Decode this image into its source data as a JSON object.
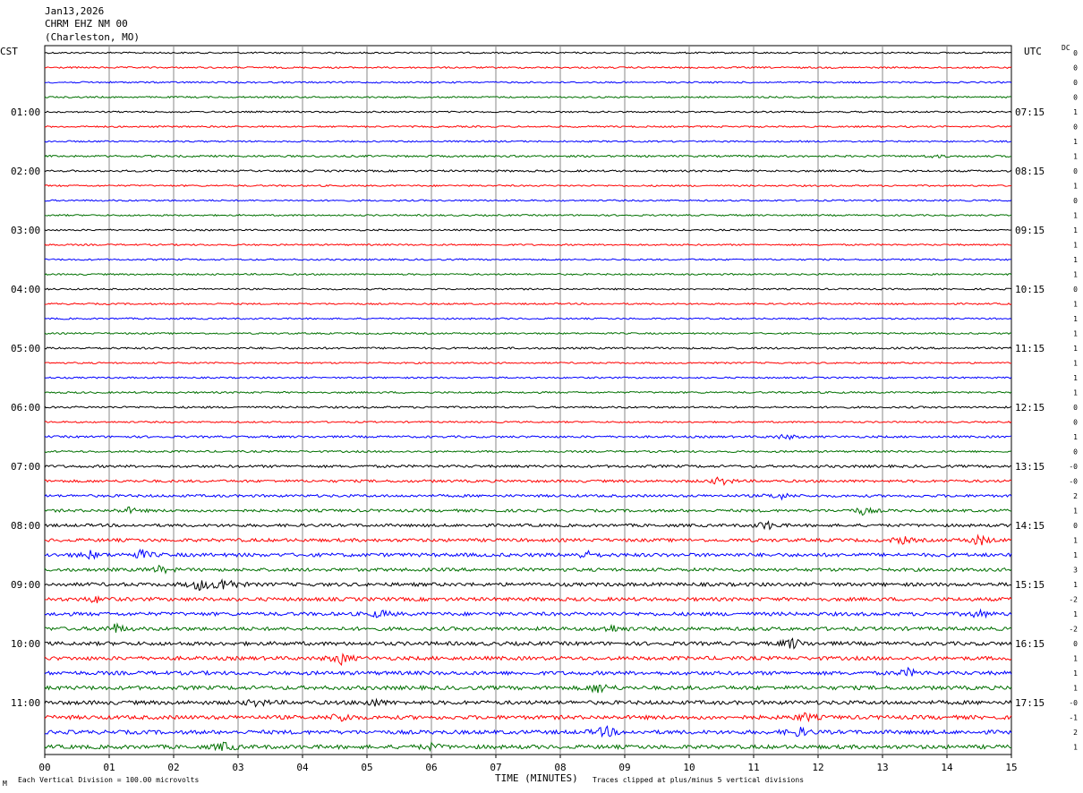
{
  "header": {
    "line1": "Jan13,2026",
    "line2": "CHRM EHZ NM 00",
    "line3": "(Charleston, MO)"
  },
  "left_timezone": "CST",
  "right_timezone": "UTC",
  "dc_label": "DC",
  "footer": {
    "scale_note": "Each Vertical Division =  100.00 microvolts",
    "clip_note": "Traces clipped at plus/minus 5 vertical divisions",
    "corner_mark": "M"
  },
  "chart_data": {
    "type": "line",
    "title": "",
    "xlabel": "TIME (MINUTES)",
    "ylabel": "",
    "xlim": [
      0,
      15
    ],
    "x_ticks": [
      "00",
      "01",
      "02",
      "03",
      "04",
      "05",
      "06",
      "07",
      "08",
      "09",
      "10",
      "11",
      "12",
      "13",
      "14",
      "15"
    ],
    "rows_per_hour": 4,
    "row_minutes": 15,
    "left_hour_labels": [
      "01:00",
      "02:00",
      "03:00",
      "04:00",
      "05:00",
      "06:00",
      "07:00",
      "08:00",
      "09:00",
      "10:00",
      "11:00"
    ],
    "right_hour_labels": [
      "07:15",
      "08:15",
      "09:15",
      "10:15",
      "11:15",
      "12:15",
      "13:15",
      "14:15",
      "15:15",
      "16:15",
      "17:15"
    ],
    "trace_colors": [
      "#000000",
      "#ff0000",
      "#0000ff",
      "#007000"
    ],
    "dc_values": [
      "0",
      "0",
      "0",
      "0",
      "1",
      "0",
      "1",
      "1",
      "0",
      "1",
      "0",
      "1",
      "1",
      "1",
      "1",
      "1",
      "0",
      "1",
      "1",
      "1",
      "1",
      "1",
      "1",
      "1",
      "0",
      "0",
      "1",
      "0",
      "-0",
      "-0",
      "2",
      "1",
      "0",
      "1",
      "1",
      "3",
      "1",
      "-2",
      "1",
      "-2",
      "0",
      "1",
      "1",
      "1",
      "-0",
      "-1",
      "2",
      "1"
    ],
    "noise_levels": [
      1,
      1,
      1,
      1,
      1,
      1,
      1,
      1.2,
      1.2,
      1,
      1,
      1,
      1,
      1,
      1,
      1,
      1,
      1,
      1,
      1,
      1.2,
      1,
      1,
      1.1,
      1.2,
      1,
      1.3,
      1.2,
      1.6,
      1.6,
      1.6,
      1.7,
      1.8,
      2,
      2.2,
      2,
      2.2,
      2.2,
      2.2,
      2.2,
      2.3,
      2.3,
      2.3,
      2.4,
      2.4,
      2.4,
      2.4,
      2.4
    ],
    "events": [
      {
        "row": 7,
        "minute": 13.8,
        "amplitude": 1.5
      },
      {
        "row": 26,
        "minute": 11.5,
        "amplitude": 3
      },
      {
        "row": 29,
        "minute": 10.5,
        "amplitude": 5
      },
      {
        "row": 30,
        "minute": 11.4,
        "amplitude": 4
      },
      {
        "row": 31,
        "minute": 1.3,
        "amplitude": 3
      },
      {
        "row": 31,
        "minute": 12.7,
        "amplitude": 4
      },
      {
        "row": 32,
        "minute": 11.2,
        "amplitude": 5
      },
      {
        "row": 33,
        "minute": 13.3,
        "amplitude": 4
      },
      {
        "row": 33,
        "minute": 14.5,
        "amplitude": 6
      },
      {
        "row": 34,
        "minute": 0.7,
        "amplitude": 4
      },
      {
        "row": 34,
        "minute": 1.5,
        "amplitude": 5
      },
      {
        "row": 34,
        "minute": 8.4,
        "amplitude": 4
      },
      {
        "row": 35,
        "minute": 1.8,
        "amplitude": 4
      },
      {
        "row": 36,
        "minute": 2.8,
        "amplitude": 9
      },
      {
        "row": 36,
        "minute": 2.4,
        "amplitude": 6
      },
      {
        "row": 37,
        "minute": 0.8,
        "amplitude": 3
      },
      {
        "row": 38,
        "minute": 5.2,
        "amplitude": 4
      },
      {
        "row": 38,
        "minute": 14.5,
        "amplitude": 4
      },
      {
        "row": 39,
        "minute": 1.1,
        "amplitude": 5
      },
      {
        "row": 39,
        "minute": 8.8,
        "amplitude": 4
      },
      {
        "row": 40,
        "minute": 11.6,
        "amplitude": 6
      },
      {
        "row": 41,
        "minute": 4.6,
        "amplitude": 6
      },
      {
        "row": 42,
        "minute": 13.4,
        "amplitude": 4
      },
      {
        "row": 43,
        "minute": 8.6,
        "amplitude": 6
      },
      {
        "row": 44,
        "minute": 3.3,
        "amplitude": 4
      },
      {
        "row": 44,
        "minute": 5.1,
        "amplitude": 4
      },
      {
        "row": 45,
        "minute": 4.6,
        "amplitude": 5
      },
      {
        "row": 45,
        "minute": 11.8,
        "amplitude": 4
      },
      {
        "row": 46,
        "minute": 8.7,
        "amplitude": 6
      },
      {
        "row": 46,
        "minute": 11.7,
        "amplitude": 5
      },
      {
        "row": 47,
        "minute": 2.8,
        "amplitude": 5
      },
      {
        "row": 47,
        "minute": 6.0,
        "amplitude": 3
      }
    ],
    "grid": true
  }
}
